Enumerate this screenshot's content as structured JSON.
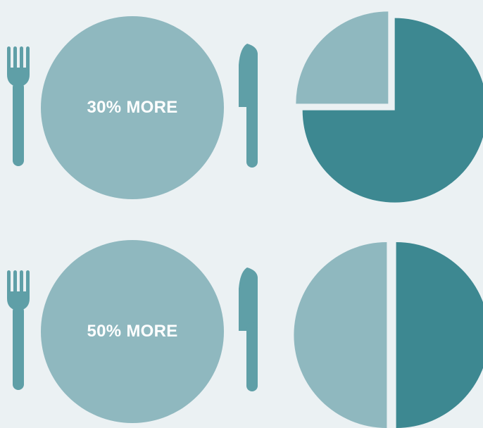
{
  "colors": {
    "background": "#ebf1f3",
    "light": "#8fb8bf",
    "dark": "#3d8891",
    "utensil": "#5f9fa7"
  },
  "icons": {
    "fork": "fork-icon",
    "knife": "knife-icon",
    "plate": "plate-icon"
  },
  "chart_data": [
    {
      "type": "pie",
      "label": "30% MORE",
      "slices": [
        {
          "value": 25,
          "color": "#8fb8bf"
        },
        {
          "value": 75,
          "color": "#3d8891"
        }
      ]
    },
    {
      "type": "pie",
      "label": "50% MORE",
      "slices": [
        {
          "value": 50,
          "color": "#8fb8bf"
        },
        {
          "value": 50,
          "color": "#3d8891"
        }
      ]
    }
  ]
}
